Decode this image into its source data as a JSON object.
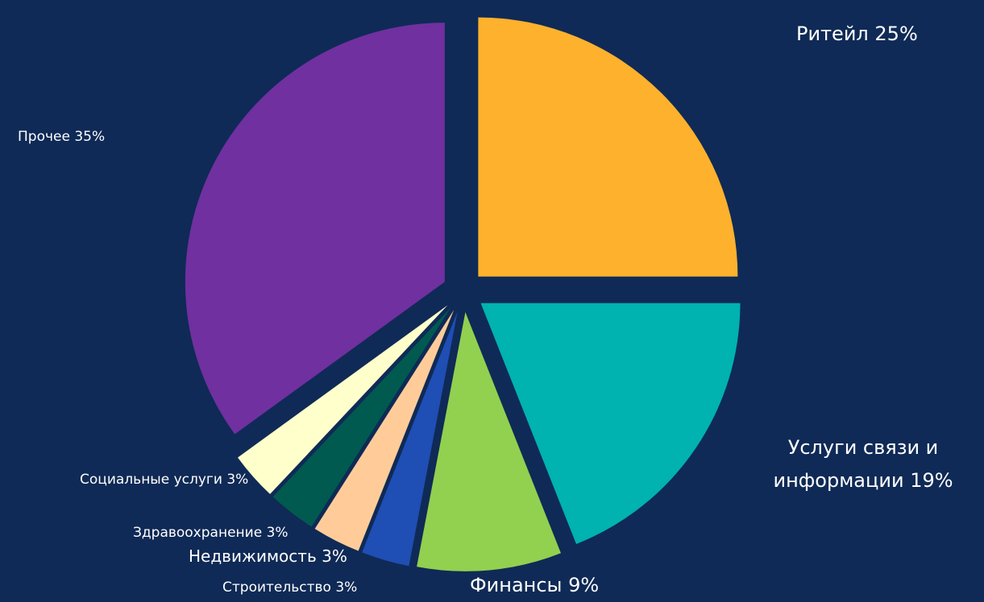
{
  "chart_data": {
    "type": "pie",
    "categories": [
      "Ритейл",
      "Услуги связи и информации",
      "Финансы",
      "Строительство",
      "Недвижимость",
      "Здравоохранение",
      "Социальные услуги",
      "Прочее"
    ],
    "values": [
      25,
      19,
      9,
      3,
      3,
      3,
      3,
      35
    ],
    "value_labels": [
      "25%",
      "19%",
      "9%",
      "3%",
      "3%",
      "3%",
      "3%",
      "35%"
    ],
    "colors": [
      "#fdb12d",
      "#00b2b0",
      "#92d050",
      "#1f4eb4",
      "#ffcc99",
      "#005a50",
      "#ffffcc",
      "#7030a0"
    ]
  }
}
